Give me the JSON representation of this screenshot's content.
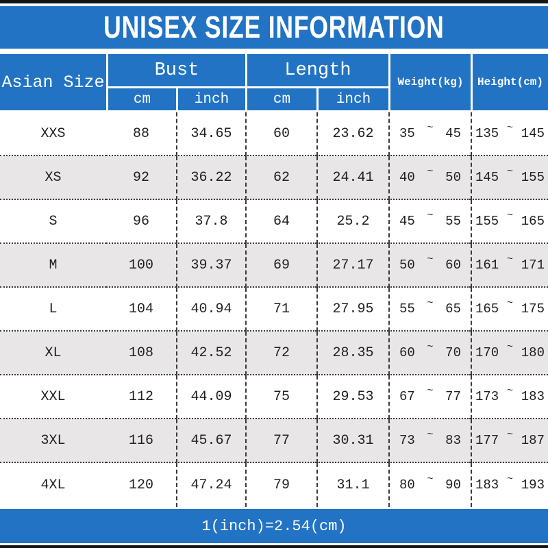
{
  "title": "UNISEX SIZE INFORMATION",
  "colors": {
    "blue": "#2273c4",
    "row_alt": "#e9e6e7",
    "text": "#1f1f1f",
    "grid_line": "#3a3a3a"
  },
  "table": {
    "range_tilde": "~",
    "headers": {
      "asian_size": "Asian Size",
      "bust": "Bust",
      "length": "Length",
      "weight": "Weight(kg)",
      "height": "Height(cm)",
      "cm": "cm",
      "inch": "inch"
    },
    "rows": [
      {
        "size": "XXS",
        "bust_cm": "88",
        "bust_inch": "34.65",
        "length_cm": "60",
        "length_inch": "23.62",
        "weight_min": "35",
        "weight_max": "45",
        "height_min": "135",
        "height_max": "145"
      },
      {
        "size": "XS",
        "bust_cm": "92",
        "bust_inch": "36.22",
        "length_cm": "62",
        "length_inch": "24.41",
        "weight_min": "40",
        "weight_max": "50",
        "height_min": "145",
        "height_max": "155"
      },
      {
        "size": "S",
        "bust_cm": "96",
        "bust_inch": "37.8",
        "length_cm": "64",
        "length_inch": "25.2",
        "weight_min": "45",
        "weight_max": "55",
        "height_min": "155",
        "height_max": "165"
      },
      {
        "size": "M",
        "bust_cm": "100",
        "bust_inch": "39.37",
        "length_cm": "69",
        "length_inch": "27.17",
        "weight_min": "50",
        "weight_max": "60",
        "height_min": "161",
        "height_max": "171"
      },
      {
        "size": "L",
        "bust_cm": "104",
        "bust_inch": "40.94",
        "length_cm": "71",
        "length_inch": "27.95",
        "weight_min": "55",
        "weight_max": "65",
        "height_min": "165",
        "height_max": "175"
      },
      {
        "size": "XL",
        "bust_cm": "108",
        "bust_inch": "42.52",
        "length_cm": "72",
        "length_inch": "28.35",
        "weight_min": "60",
        "weight_max": "70",
        "height_min": "170",
        "height_max": "180"
      },
      {
        "size": "XXL",
        "bust_cm": "112",
        "bust_inch": "44.09",
        "length_cm": "75",
        "length_inch": "29.53",
        "weight_min": "67",
        "weight_max": "77",
        "height_min": "173",
        "height_max": "183"
      },
      {
        "size": "3XL",
        "bust_cm": "116",
        "bust_inch": "45.67",
        "length_cm": "77",
        "length_inch": "30.31",
        "weight_min": "73",
        "weight_max": "83",
        "height_min": "177",
        "height_max": "187"
      },
      {
        "size": "4XL",
        "bust_cm": "120",
        "bust_inch": "47.24",
        "length_cm": "79",
        "length_inch": "31.1",
        "weight_min": "80",
        "weight_max": "90",
        "height_min": "183",
        "height_max": "193"
      }
    ]
  },
  "footer": {
    "note": "1(inch)=2.54(cm)"
  }
}
